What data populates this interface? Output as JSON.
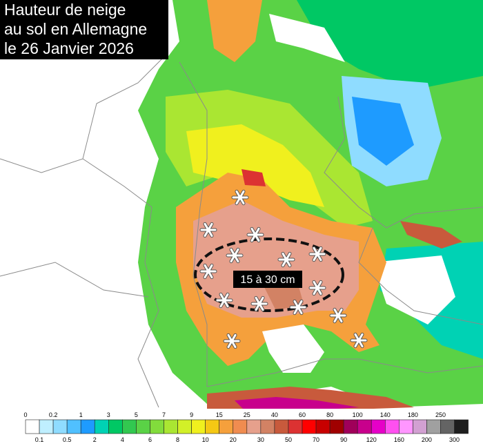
{
  "title": [
    "Hauteur de neige",
    "au sol en Allemagne",
    "le 26 Janvier 2026"
  ],
  "annotation": "15 à 30 cm",
  "legend": {
    "labels": [
      0,
      0.1,
      0.2,
      0.5,
      1,
      2,
      3,
      4,
      5,
      6,
      7,
      8,
      9,
      10,
      15,
      20,
      25,
      30,
      40,
      50,
      60,
      70,
      80,
      90,
      100,
      120,
      140,
      160,
      180,
      200,
      250,
      300
    ],
    "colors": [
      "#ffffff",
      "#bfefff",
      "#8fdcff",
      "#50c0ff",
      "#1e9bff",
      "#00d2b4",
      "#00c864",
      "#32c850",
      "#5ad246",
      "#82dc3c",
      "#aae632",
      "#d2f028",
      "#f0f01e",
      "#f5c814",
      "#f5a03c",
      "#f08c50",
      "#e6a08c",
      "#d28264",
      "#c85a3c",
      "#dc3232",
      "#ff0000",
      "#c80000",
      "#a00000",
      "#a0005a",
      "#c8008c",
      "#e600c8",
      "#ff50f0",
      "#ff96ff",
      "#d2a0d2",
      "#a0a0a0",
      "#646464",
      "#1e1e1e"
    ]
  }
}
